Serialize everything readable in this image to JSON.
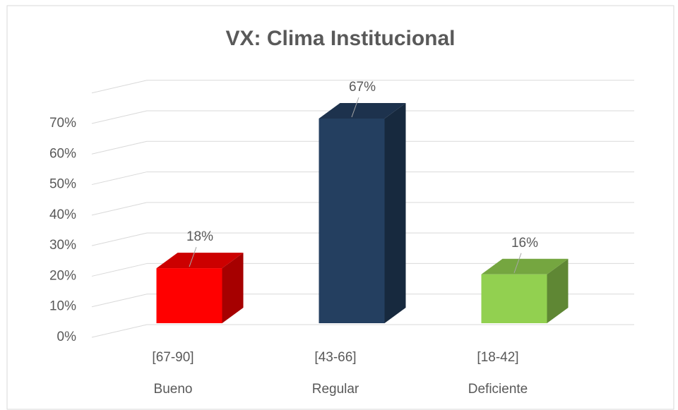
{
  "chart_data": {
    "type": "bar3d",
    "title": "VX: Clima Institucional",
    "categories": [
      "Bueno",
      "Regular",
      "Deficiente"
    ],
    "ranges": [
      "[67-90]",
      "[43-66]",
      "[18-42]"
    ],
    "values": [
      18,
      67,
      16
    ],
    "value_labels": [
      "18%",
      "67%",
      "16%"
    ],
    "colors": [
      "#ff0000",
      "#243f60",
      "#92d050"
    ],
    "ylim": [
      0,
      80
    ],
    "yticks": [
      {
        "value": 0,
        "label": "0%"
      },
      {
        "value": 10,
        "label": "10%"
      },
      {
        "value": 20,
        "label": "20%"
      },
      {
        "value": 30,
        "label": "30%"
      },
      {
        "value": 40,
        "label": "40%"
      },
      {
        "value": 50,
        "label": "50%"
      },
      {
        "value": 60,
        "label": "60%"
      },
      {
        "value": 70,
        "label": "70%"
      }
    ],
    "grid": true
  }
}
